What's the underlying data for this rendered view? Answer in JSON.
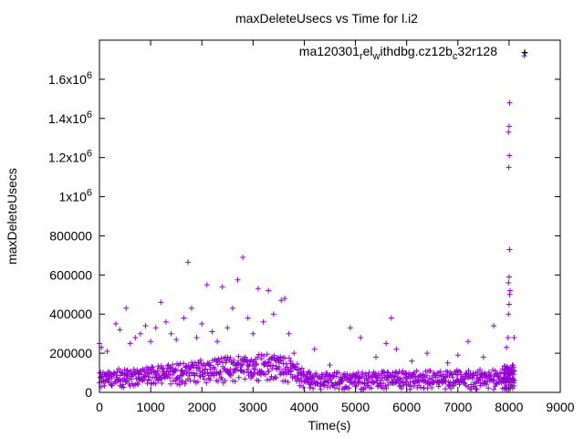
{
  "chart_data": {
    "type": "scatter",
    "title": "maxDeleteUsecs vs Time for l.i2",
    "xlabel": "Time(s)",
    "ylabel": "maxDeleteUsecs",
    "xlim": [
      0,
      9000
    ],
    "ylim": [
      0,
      1800000
    ],
    "x_ticks": [
      "0",
      "1000",
      "2000",
      "3000",
      "4000",
      "5000",
      "6000",
      "7000",
      "8000",
      "9000"
    ],
    "y_ticks": [
      {
        "value": 0,
        "mantissa": "0",
        "exp": ""
      },
      {
        "value": 200000,
        "mantissa": "200000",
        "exp": ""
      },
      {
        "value": 400000,
        "mantissa": "400000",
        "exp": ""
      },
      {
        "value": 600000,
        "mantissa": "600000",
        "exp": ""
      },
      {
        "value": 800000,
        "mantissa": "800000",
        "exp": ""
      },
      {
        "value": 1000000,
        "mantissa": "1x10",
        "exp": "6"
      },
      {
        "value": 1200000,
        "mantissa": "1.2x10",
        "exp": "6"
      },
      {
        "value": 1400000,
        "mantissa": "1.4x10",
        "exp": "6"
      },
      {
        "value": 1600000,
        "mantissa": "1.6x10",
        "exp": "6"
      }
    ],
    "grid": false,
    "legend_position": "top-right",
    "legend": {
      "parts": [
        {
          "text": "ma120301",
          "sub": false
        },
        {
          "text": "r",
          "sub": true
        },
        {
          "text": "el",
          "sub": false
        },
        {
          "text": "w",
          "sub": true
        },
        {
          "text": "ithdbg.cz12b",
          "sub": false
        },
        {
          "text": "c",
          "sub": true
        },
        {
          "text": "32r128",
          "sub": false
        }
      ]
    },
    "marker": "+",
    "color": "#9400d3",
    "series_name": "ma120301relwithdbg.cz12bc32r128",
    "bands": [
      {
        "x": [
          0,
          3500
        ],
        "low_start": 20000,
        "low_end": 60000,
        "high_start": 110000,
        "high_end": 210000,
        "step": 25
      },
      {
        "x": [
          3500,
          4100
        ],
        "low_start": 60000,
        "low_end": 15000,
        "high_start": 210000,
        "high_end": 110000,
        "step": 25
      },
      {
        "x": [
          4100,
          7900
        ],
        "low_start": 15000,
        "low_end": 15000,
        "high_start": 100000,
        "high_end": 120000,
        "step": 25
      },
      {
        "x": [
          7900,
          8100
        ],
        "low_start": 15000,
        "low_end": 15000,
        "high_start": 140000,
        "high_end": 140000,
        "step": 8
      }
    ],
    "outliers": [
      {
        "x": 0,
        "y": 250000
      },
      {
        "x": 40,
        "y": 230000
      },
      {
        "x": 150,
        "y": 210000
      },
      {
        "x": 320,
        "y": 350000
      },
      {
        "x": 400,
        "y": 320000
      },
      {
        "x": 520,
        "y": 430000
      },
      {
        "x": 600,
        "y": 250000
      },
      {
        "x": 700,
        "y": 280000
      },
      {
        "x": 800,
        "y": 300000
      },
      {
        "x": 900,
        "y": 340000
      },
      {
        "x": 1000,
        "y": 260000
      },
      {
        "x": 1100,
        "y": 330000
      },
      {
        "x": 1200,
        "y": 460000
      },
      {
        "x": 1300,
        "y": 360000
      },
      {
        "x": 1400,
        "y": 300000
      },
      {
        "x": 1500,
        "y": 270000
      },
      {
        "x": 1650,
        "y": 380000
      },
      {
        "x": 1730,
        "y": 665000
      },
      {
        "x": 1800,
        "y": 430000
      },
      {
        "x": 1900,
        "y": 280000
      },
      {
        "x": 2000,
        "y": 350000
      },
      {
        "x": 2100,
        "y": 550000
      },
      {
        "x": 2200,
        "y": 310000
      },
      {
        "x": 2300,
        "y": 260000
      },
      {
        "x": 2400,
        "y": 540000
      },
      {
        "x": 2500,
        "y": 330000
      },
      {
        "x": 2600,
        "y": 430000
      },
      {
        "x": 2700,
        "y": 575000
      },
      {
        "x": 2800,
        "y": 690000
      },
      {
        "x": 2900,
        "y": 380000
      },
      {
        "x": 3000,
        "y": 300000
      },
      {
        "x": 3100,
        "y": 530000
      },
      {
        "x": 3200,
        "y": 360000
      },
      {
        "x": 3300,
        "y": 520000
      },
      {
        "x": 3400,
        "y": 400000
      },
      {
        "x": 3550,
        "y": 470000
      },
      {
        "x": 3620,
        "y": 480000
      },
      {
        "x": 3700,
        "y": 300000
      },
      {
        "x": 3800,
        "y": 200000
      },
      {
        "x": 4200,
        "y": 220000
      },
      {
        "x": 4500,
        "y": 140000
      },
      {
        "x": 4900,
        "y": 330000
      },
      {
        "x": 5100,
        "y": 280000
      },
      {
        "x": 5400,
        "y": 180000
      },
      {
        "x": 5600,
        "y": 250000
      },
      {
        "x": 5700,
        "y": 380000
      },
      {
        "x": 5800,
        "y": 220000
      },
      {
        "x": 6100,
        "y": 160000
      },
      {
        "x": 6400,
        "y": 200000
      },
      {
        "x": 6800,
        "y": 150000
      },
      {
        "x": 7000,
        "y": 190000
      },
      {
        "x": 7200,
        "y": 260000
      },
      {
        "x": 7500,
        "y": 180000
      },
      {
        "x": 7700,
        "y": 340000
      },
      {
        "x": 7950,
        "y": 230000
      },
      {
        "x": 7980,
        "y": 280000
      },
      {
        "x": 7990,
        "y": 400000
      },
      {
        "x": 8000,
        "y": 450000
      },
      {
        "x": 8010,
        "y": 500000
      },
      {
        "x": 8020,
        "y": 520000
      },
      {
        "x": 7990,
        "y": 560000
      },
      {
        "x": 8000,
        "y": 590000
      },
      {
        "x": 8010,
        "y": 730000
      },
      {
        "x": 7995,
        "y": 1150000
      },
      {
        "x": 8005,
        "y": 1210000
      },
      {
        "x": 7990,
        "y": 1330000
      },
      {
        "x": 8000,
        "y": 1360000
      },
      {
        "x": 8010,
        "y": 1480000
      },
      {
        "x": 8100,
        "y": 280000
      },
      {
        "x": 8300,
        "y": 1720000
      }
    ]
  }
}
